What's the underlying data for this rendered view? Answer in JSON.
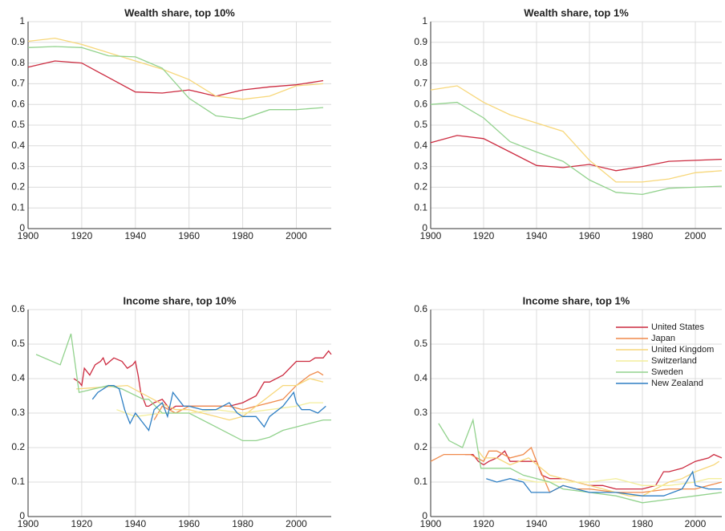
{
  "chart_data": [
    {
      "type": "line",
      "title": "Wealth share, top 10%",
      "xlim": [
        1900,
        2013
      ],
      "xticks": [
        1900,
        1920,
        1940,
        1960,
        1980,
        2000
      ],
      "ylim": [
        0,
        1
      ],
      "yticks": [
        0,
        0.1,
        0.2,
        0.3,
        0.4,
        0.5,
        0.6,
        0.7,
        0.8,
        0.9,
        1
      ],
      "grid": true,
      "x": [
        1900,
        1910,
        1920,
        1930,
        1940,
        1950,
        1960,
        1970,
        1980,
        1990,
        2000,
        2010
      ],
      "series": [
        {
          "color": "#cc2a3f",
          "values": [
            0.78,
            0.81,
            0.8,
            0.73,
            0.66,
            0.655,
            0.67,
            0.64,
            0.67,
            0.685,
            0.695,
            0.715
          ]
        },
        {
          "color": "#f7d77a",
          "values": [
            0.905,
            0.92,
            0.89,
            0.85,
            0.81,
            0.77,
            0.72,
            0.64,
            0.625,
            0.64,
            0.69,
            0.7
          ]
        },
        {
          "color": "#92d28d",
          "values": [
            0.875,
            0.88,
            0.875,
            0.835,
            0.83,
            0.775,
            0.63,
            0.545,
            0.53,
            0.575,
            0.575,
            0.585
          ]
        }
      ]
    },
    {
      "type": "line",
      "title": "Wealth share, top 1%",
      "xlim": [
        1900,
        2010
      ],
      "xticks": [
        1900,
        1920,
        1940,
        1960,
        1980,
        2000
      ],
      "ylim": [
        0,
        1
      ],
      "yticks": [
        0,
        0.1,
        0.2,
        0.3,
        0.4,
        0.5,
        0.6,
        0.7,
        0.8,
        0.9,
        1
      ],
      "grid": true,
      "x": [
        1900,
        1910,
        1920,
        1930,
        1940,
        1950,
        1960,
        1970,
        1980,
        1990,
        2000,
        2010
      ],
      "series": [
        {
          "color": "#cc2a3f",
          "values": [
            0.415,
            0.45,
            0.435,
            0.37,
            0.305,
            0.295,
            0.31,
            0.28,
            0.3,
            0.325,
            0.33,
            0.335
          ]
        },
        {
          "color": "#f7d77a",
          "values": [
            0.67,
            0.69,
            0.61,
            0.55,
            0.51,
            0.47,
            0.33,
            0.225,
            0.225,
            0.24,
            0.27,
            0.28
          ]
        },
        {
          "color": "#92d28d",
          "values": [
            0.6,
            0.61,
            0.535,
            0.42,
            0.37,
            0.325,
            0.235,
            0.175,
            0.165,
            0.195,
            0.2,
            0.205
          ]
        }
      ]
    },
    {
      "type": "line",
      "title": "Income share, top 10%",
      "xlim": [
        1900,
        2013
      ],
      "xticks": [
        1900,
        1920,
        1940,
        1960,
        1980,
        2000
      ],
      "ylim": [
        0,
        0.6
      ],
      "yticks": [
        0,
        0.1,
        0.2,
        0.3,
        0.4,
        0.5,
        0.6
      ],
      "grid": true,
      "series": [
        {
          "color": "#cc2a3f",
          "x": [
            1917,
            1919,
            1920,
            1921,
            1923,
            1925,
            1927,
            1928,
            1929,
            1932,
            1935,
            1937,
            1939,
            1940,
            1941,
            1942,
            1944,
            1945,
            1947,
            1950,
            1953,
            1955,
            1960,
            1965,
            1970,
            1975,
            1980,
            1985,
            1988,
            1990,
            1995,
            2000,
            2005,
            2007,
            2010,
            2012,
            2013
          ],
          "values": [
            0.4,
            0.39,
            0.38,
            0.43,
            0.41,
            0.44,
            0.45,
            0.46,
            0.44,
            0.46,
            0.45,
            0.43,
            0.44,
            0.45,
            0.41,
            0.36,
            0.32,
            0.32,
            0.33,
            0.34,
            0.31,
            0.32,
            0.32,
            0.32,
            0.32,
            0.32,
            0.33,
            0.35,
            0.39,
            0.39,
            0.41,
            0.45,
            0.45,
            0.46,
            0.46,
            0.48,
            0.47
          ]
        },
        {
          "color": "#f08a4b",
          "x": [
            1947,
            1950,
            1955,
            1960,
            1965,
            1970,
            1975,
            1980,
            1985,
            1990,
            1995,
            2000,
            2005,
            2008,
            2010
          ],
          "values": [
            0.28,
            0.32,
            0.3,
            0.32,
            0.32,
            0.32,
            0.32,
            0.31,
            0.32,
            0.33,
            0.34,
            0.38,
            0.41,
            0.42,
            0.41
          ]
        },
        {
          "color": "#f7d77a",
          "x": [
            1918,
            1937,
            1949,
            1955,
            1960,
            1970,
            1975,
            1980,
            1985,
            1990,
            1995,
            2000,
            2005,
            2010
          ],
          "values": [
            0.37,
            0.38,
            0.33,
            0.31,
            0.31,
            0.29,
            0.28,
            0.29,
            0.32,
            0.35,
            0.38,
            0.38,
            0.4,
            0.39
          ]
        },
        {
          "color": "#f3ee9c",
          "x": [
            1933,
            1940,
            1950,
            1960,
            1970,
            1980,
            1990,
            2000,
            2005,
            2010
          ],
          "values": [
            0.31,
            0.29,
            0.3,
            0.3,
            0.31,
            0.3,
            0.31,
            0.32,
            0.33,
            0.33
          ]
        },
        {
          "color": "#92d28d",
          "x": [
            1903,
            1912,
            1916,
            1919,
            1930,
            1935,
            1943,
            1945,
            1950,
            1960,
            1970,
            1975,
            1980,
            1985,
            1990,
            1995,
            2000,
            2005,
            2010,
            2013
          ],
          "values": [
            0.47,
            0.44,
            0.53,
            0.36,
            0.38,
            0.37,
            0.34,
            0.34,
            0.3,
            0.3,
            0.26,
            0.24,
            0.22,
            0.22,
            0.23,
            0.25,
            0.26,
            0.27,
            0.28,
            0.28
          ]
        },
        {
          "color": "#2e7fc4",
          "x": [
            1924,
            1926,
            1928,
            1930,
            1932,
            1934,
            1936,
            1938,
            1940,
            1943,
            1945,
            1947,
            1950,
            1952,
            1954,
            1956,
            1958,
            1960,
            1965,
            1970,
            1975,
            1978,
            1980,
            1985,
            1988,
            1990,
            1995,
            1999,
            2000,
            2002,
            2005,
            2008,
            2011
          ],
          "values": [
            0.34,
            0.36,
            0.37,
            0.38,
            0.38,
            0.37,
            0.31,
            0.27,
            0.3,
            0.27,
            0.25,
            0.31,
            0.33,
            0.29,
            0.36,
            0.34,
            0.32,
            0.32,
            0.31,
            0.31,
            0.33,
            0.3,
            0.29,
            0.29,
            0.26,
            0.29,
            0.32,
            0.36,
            0.33,
            0.31,
            0.31,
            0.3,
            0.32
          ]
        }
      ]
    },
    {
      "type": "line",
      "title": "Income share, top 1%",
      "xlim": [
        1900,
        2010
      ],
      "xticks": [
        1900,
        1920,
        1940,
        1960,
        1980,
        2000
      ],
      "ylim": [
        0,
        0.6
      ],
      "yticks": [
        0,
        0.1,
        0.2,
        0.3,
        0.4,
        0.5,
        0.6
      ],
      "grid": true,
      "legend": "upper right",
      "series": [
        {
          "name": "United States",
          "color": "#cc2a3f",
          "x": [
            1913,
            1916,
            1918,
            1920,
            1922,
            1925,
            1928,
            1930,
            1935,
            1940,
            1942,
            1945,
            1950,
            1955,
            1960,
            1965,
            1970,
            1975,
            1980,
            1985,
            1988,
            1990,
            1995,
            2000,
            2005,
            2007,
            2010
          ],
          "values": [
            0.18,
            0.18,
            0.16,
            0.15,
            0.16,
            0.17,
            0.19,
            0.16,
            0.16,
            0.16,
            0.12,
            0.11,
            0.11,
            0.1,
            0.09,
            0.09,
            0.08,
            0.08,
            0.08,
            0.09,
            0.13,
            0.13,
            0.14,
            0.16,
            0.17,
            0.18,
            0.17
          ]
        },
        {
          "name": "Japan",
          "color": "#f08a4b",
          "x": [
            1900,
            1905,
            1910,
            1915,
            1920,
            1922,
            1925,
            1930,
            1935,
            1938,
            1940,
            1945,
            1950,
            1955,
            1960,
            1970,
            1980,
            1990,
            2000,
            2005,
            2010
          ],
          "values": [
            0.16,
            0.18,
            0.18,
            0.18,
            0.16,
            0.19,
            0.19,
            0.17,
            0.18,
            0.2,
            0.16,
            0.07,
            0.09,
            0.08,
            0.08,
            0.07,
            0.07,
            0.08,
            0.08,
            0.09,
            0.1
          ]
        },
        {
          "name": "United Kingdom",
          "color": "#f7d77a",
          "x": [
            1918,
            1920,
            1925,
            1930,
            1937,
            1945,
            1950,
            1960,
            1970,
            1975,
            1980,
            1985,
            1990,
            1995,
            2000,
            2007,
            2009
          ],
          "values": [
            0.19,
            0.17,
            0.17,
            0.15,
            0.17,
            0.12,
            0.11,
            0.09,
            0.07,
            0.06,
            0.06,
            0.08,
            0.1,
            0.11,
            0.13,
            0.15,
            0.16
          ]
        },
        {
          "name": "Switzerland",
          "color": "#f3ee9c",
          "x": [
            1933,
            1940,
            1950,
            1960,
            1970,
            1980,
            1990,
            2000,
            2005,
            2010
          ],
          "values": [
            0.11,
            0.1,
            0.1,
            0.1,
            0.11,
            0.09,
            0.09,
            0.1,
            0.11,
            0.11
          ]
        },
        {
          "name": "Sweden",
          "color": "#92d28d",
          "x": [
            1903,
            1907,
            1912,
            1916,
            1919,
            1930,
            1935,
            1945,
            1950,
            1960,
            1970,
            1980,
            1990,
            2000,
            2010
          ],
          "values": [
            0.27,
            0.22,
            0.2,
            0.28,
            0.14,
            0.14,
            0.12,
            0.1,
            0.08,
            0.07,
            0.06,
            0.04,
            0.05,
            0.06,
            0.07
          ]
        },
        {
          "name": "New Zealand",
          "color": "#2e7fc4",
          "x": [
            1921,
            1925,
            1930,
            1935,
            1938,
            1945,
            1950,
            1955,
            1960,
            1970,
            1980,
            1988,
            1995,
            1999,
            2000,
            2005,
            2010
          ],
          "values": [
            0.11,
            0.1,
            0.11,
            0.1,
            0.07,
            0.07,
            0.09,
            0.08,
            0.07,
            0.07,
            0.06,
            0.06,
            0.08,
            0.13,
            0.09,
            0.08,
            0.08
          ]
        }
      ]
    }
  ]
}
